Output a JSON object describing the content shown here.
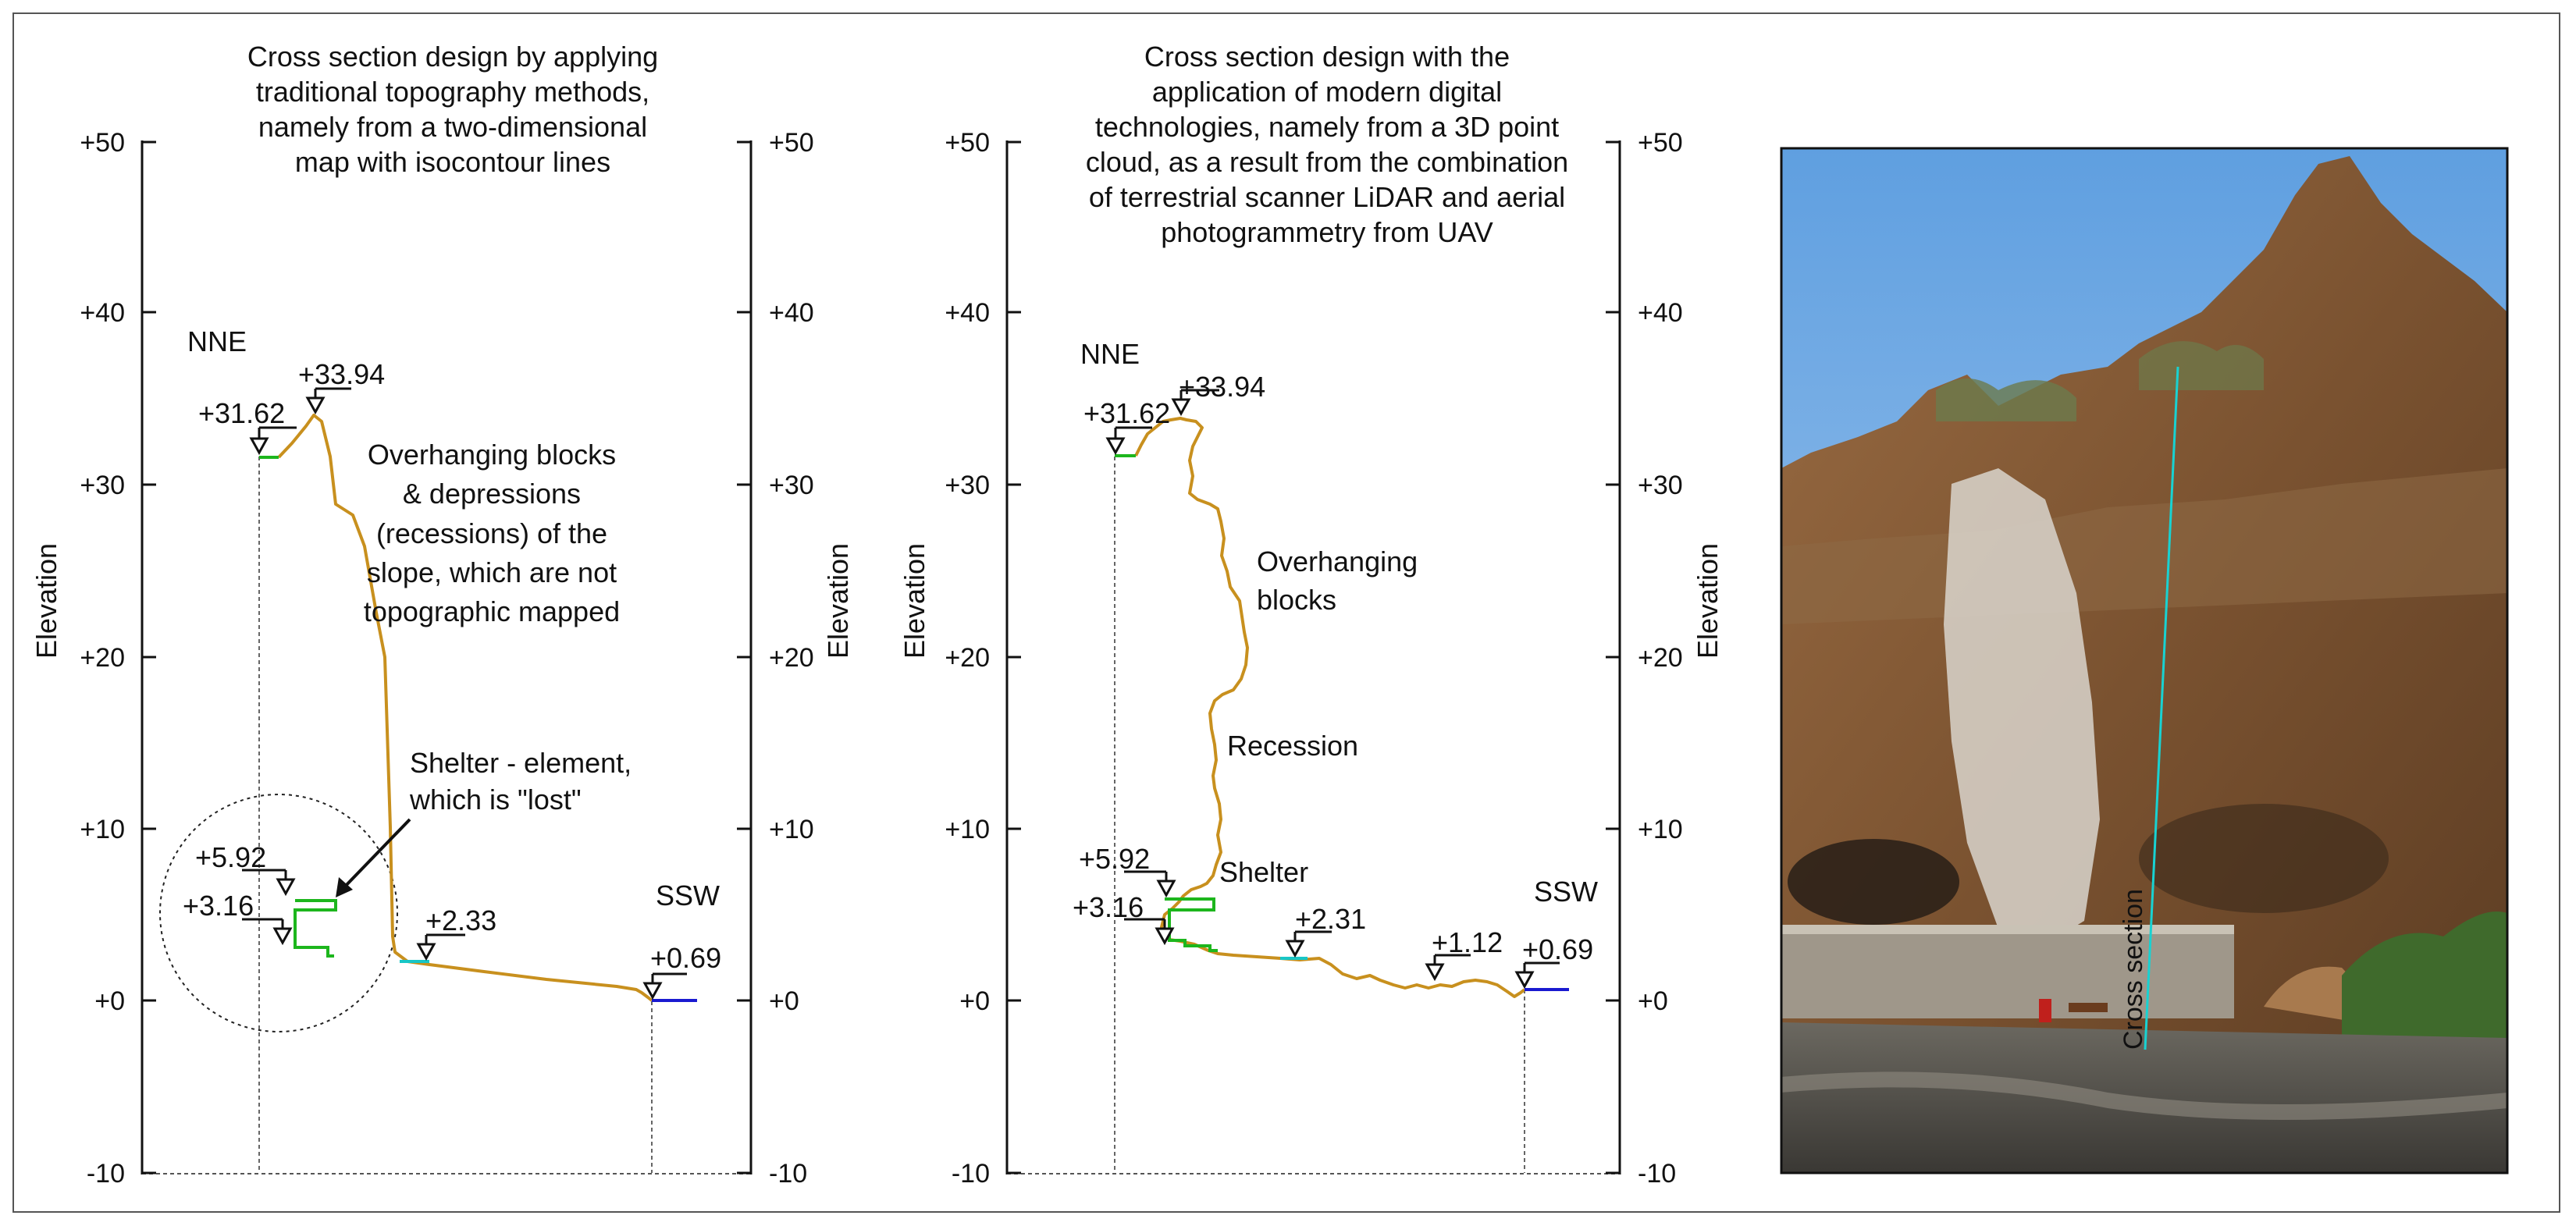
{
  "left_panel": {
    "title_lines": [
      "Cross section design by applying",
      "traditional topography methods,",
      "namely from a two-dimensional",
      "map with isocontour lines"
    ],
    "y_axis_label": "Elevation",
    "ticks": [
      "+50",
      "+40",
      "+30",
      "+20",
      "+10",
      "+0",
      "-10"
    ],
    "directions": {
      "north": "NNE",
      "south": "SSW"
    },
    "note_lines": [
      "Overhanging blocks",
      "& depressions",
      "(recessions) of the",
      "slope, which are not",
      "topographic mapped"
    ],
    "shelter_note_lines": [
      "Shelter - element,",
      "which is \"lost\""
    ],
    "elevation_marks": [
      "+31.62",
      "+33.94",
      "+5.92",
      "+3.16",
      "+2.33",
      "+0.69"
    ]
  },
  "middle_panel": {
    "title_lines": [
      "Cross section design with the",
      "application of modern digital",
      "technologies, namely from a 3D point",
      "cloud, as a result from the combination",
      "of terrestrial scanner LiDAR and aerial",
      "photogrammetry from UAV"
    ],
    "y_axis_label": "Elevation",
    "ticks": [
      "+50",
      "+40",
      "+30",
      "+20",
      "+10",
      "+0",
      "-10"
    ],
    "directions": {
      "north": "NNE",
      "south": "SSW"
    },
    "labels": {
      "overhanging_1": "Overhanging",
      "overhanging_2": "blocks",
      "recession": "Recession",
      "shelter": "Shelter"
    },
    "elevation_marks": [
      "+31.62",
      "+33.94",
      "+5.92",
      "+3.16",
      "+2.31",
      "+1.12",
      "+0.69"
    ]
  },
  "photo": {
    "overlay_label": "Cross section"
  },
  "colors": {
    "profile": "#c8901e",
    "shelter": "#1db61d",
    "platform": "#18c6c6",
    "sea": "#1a1ad0",
    "axis": "#111111",
    "guide": "#666666"
  }
}
